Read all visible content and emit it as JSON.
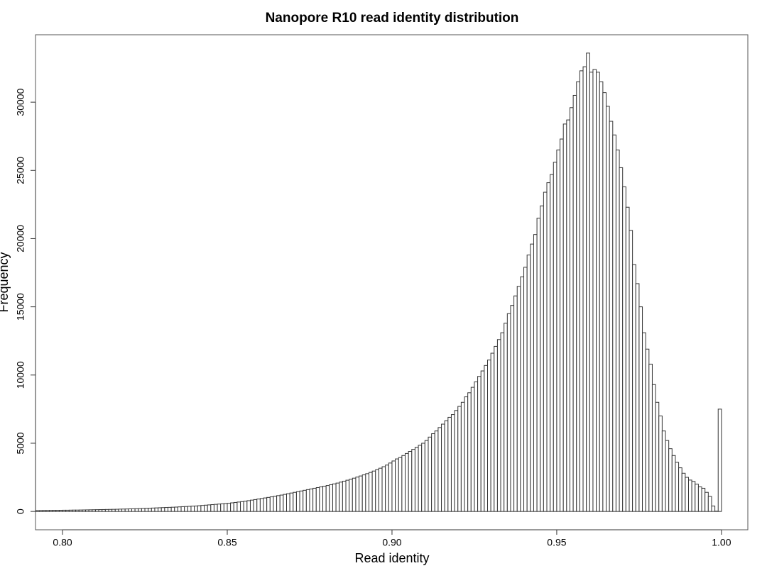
{
  "chart_data": {
    "type": "histogram",
    "title": "Nanopore R10 read identity distribution",
    "x_label": "Read identity",
    "y_label": "Frequency",
    "bins": [
      0.792,
      0.793,
      0.794,
      0.795,
      0.796,
      0.797,
      0.798,
      0.799,
      0.8,
      0.801,
      0.802,
      0.803,
      0.804,
      0.805,
      0.806,
      0.807,
      0.808,
      0.809,
      0.81,
      0.811,
      0.812,
      0.813,
      0.814,
      0.815,
      0.816,
      0.817,
      0.818,
      0.819,
      0.82,
      0.821,
      0.822,
      0.823,
      0.824,
      0.825,
      0.826,
      0.827,
      0.828,
      0.829,
      0.83,
      0.831,
      0.832,
      0.833,
      0.834,
      0.835,
      0.836,
      0.837,
      0.838,
      0.839,
      0.84,
      0.841,
      0.842,
      0.843,
      0.844,
      0.845,
      0.846,
      0.847,
      0.848,
      0.849,
      0.85,
      0.851,
      0.852,
      0.853,
      0.854,
      0.855,
      0.856,
      0.857,
      0.858,
      0.859,
      0.86,
      0.861,
      0.862,
      0.863,
      0.864,
      0.865,
      0.866,
      0.867,
      0.868,
      0.869,
      0.87,
      0.871,
      0.872,
      0.873,
      0.874,
      0.875,
      0.876,
      0.877,
      0.878,
      0.879,
      0.88,
      0.881,
      0.882,
      0.883,
      0.884,
      0.885,
      0.886,
      0.887,
      0.888,
      0.889,
      0.89,
      0.891,
      0.892,
      0.893,
      0.894,
      0.895,
      0.896,
      0.897,
      0.898,
      0.899,
      0.9,
      0.901,
      0.902,
      0.903,
      0.904,
      0.905,
      0.906,
      0.907,
      0.908,
      0.909,
      0.91,
      0.911,
      0.912,
      0.913,
      0.914,
      0.915,
      0.916,
      0.917,
      0.918,
      0.919,
      0.92,
      0.921,
      0.922,
      0.923,
      0.924,
      0.925,
      0.926,
      0.927,
      0.928,
      0.929,
      0.93,
      0.931,
      0.932,
      0.933,
      0.934,
      0.935,
      0.936,
      0.937,
      0.938,
      0.939,
      0.94,
      0.941,
      0.942,
      0.943,
      0.944,
      0.945,
      0.946,
      0.947,
      0.948,
      0.949,
      0.95,
      0.951,
      0.952,
      0.953,
      0.954,
      0.955,
      0.956,
      0.957,
      0.958,
      0.959,
      0.96,
      0.961,
      0.962,
      0.963,
      0.964,
      0.965,
      0.966,
      0.967,
      0.968,
      0.969,
      0.97,
      0.971,
      0.972,
      0.973,
      0.974,
      0.975,
      0.976,
      0.977,
      0.978,
      0.979,
      0.98,
      0.981,
      0.982,
      0.983,
      0.984,
      0.985,
      0.986,
      0.987,
      0.988,
      0.989,
      0.99,
      0.991,
      0.992,
      0.993,
      0.994,
      0.995,
      0.996,
      0.997,
      0.998,
      0.999,
      1.0
    ],
    "values": [
      60,
      65,
      70,
      70,
      75,
      80,
      80,
      85,
      90,
      90,
      95,
      100,
      100,
      105,
      110,
      115,
      120,
      125,
      130,
      135,
      140,
      145,
      150,
      155,
      160,
      170,
      175,
      180,
      190,
      195,
      200,
      210,
      220,
      230,
      240,
      250,
      260,
      270,
      280,
      290,
      300,
      310,
      320,
      335,
      350,
      360,
      375,
      390,
      400,
      420,
      440,
      460,
      480,
      500,
      520,
      540,
      560,
      580,
      600,
      630,
      660,
      690,
      720,
      750,
      790,
      830,
      870,
      910,
      950,
      990,
      1030,
      1070,
      1110,
      1160,
      1200,
      1250,
      1300,
      1350,
      1400,
      1450,
      1500,
      1550,
      1600,
      1650,
      1700,
      1750,
      1800,
      1850,
      1900,
      1960,
      2020,
      2080,
      2150,
      2220,
      2290,
      2360,
      2440,
      2520,
      2600,
      2680,
      2770,
      2860,
      2960,
      3060,
      3170,
      3280,
      3400,
      3550,
      3700,
      3850,
      3950,
      4100,
      4250,
      4400,
      4550,
      4700,
      4850,
      5000,
      5200,
      5450,
      5700,
      5900,
      6150,
      6400,
      6650,
      6900,
      7100,
      7400,
      7700,
      8000,
      8400,
      8700,
      9100,
      9500,
      9900,
      10300,
      10700,
      11100,
      11600,
      12100,
      12600,
      13100,
      13800,
      14500,
      15100,
      15800,
      16500,
      17200,
      17900,
      18800,
      19600,
      20300,
      21500,
      22400,
      23400,
      24100,
      24700,
      25600,
      26500,
      27300,
      28400,
      28700,
      29600,
      30500,
      31500,
      32300,
      32600,
      33600,
      32200,
      32400,
      32200,
      31500,
      30700,
      29700,
      28600,
      27600,
      26500,
      25200,
      23800,
      22300,
      20600,
      18100,
      16700,
      15000,
      13100,
      11900,
      10800,
      9300,
      8000,
      7000,
      5900,
      5200,
      4600,
      4100,
      3600,
      3200,
      2800,
      2500,
      2300,
      2200,
      2000,
      1800,
      1700,
      1400,
      1100,
      400,
      20,
      7500
    ],
    "color": "#ffffff",
    "edge_color": "#333333",
    "xlim": [
      0.7918,
      1.008
    ],
    "ylim": [
      -1344,
      34944
    ],
    "xticks": [
      {
        "value": 0.8,
        "label": "0.80"
      },
      {
        "value": 0.85,
        "label": "0.85"
      },
      {
        "value": 0.9,
        "label": "0.90"
      },
      {
        "value": 0.95,
        "label": "0.95"
      },
      {
        "value": 1.0,
        "label": "1.00"
      }
    ],
    "yticks": [
      0,
      5000,
      10000,
      15000,
      20000,
      25000,
      30000
    ],
    "grid": false
  }
}
